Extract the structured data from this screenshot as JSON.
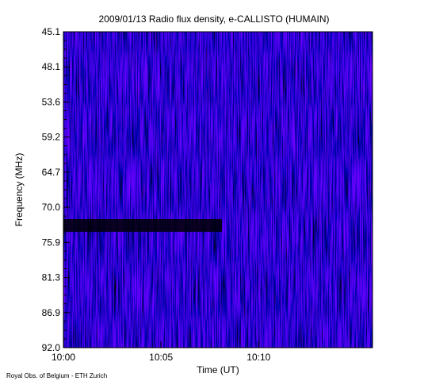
{
  "chart_data": {
    "type": "spectrogram",
    "title": "2009/01/13  Radio flux density, e-CALLISTO (HUMAIN)",
    "x_label": "Time (UT)",
    "y_label": "Frequency (MHz)",
    "credit": "Royal Obs. of Belgium - ETH Zurich",
    "xlim": [
      "10:00:00",
      "10:15:50"
    ],
    "xticks": [
      "10:00",
      "10:05",
      "10:10"
    ],
    "yticks": [
      "45.1",
      "48.1",
      "53.6",
      "59.2",
      "64.7",
      "70.0",
      "75.9",
      "81.3",
      "86.9",
      "92.0"
    ]
  }
}
